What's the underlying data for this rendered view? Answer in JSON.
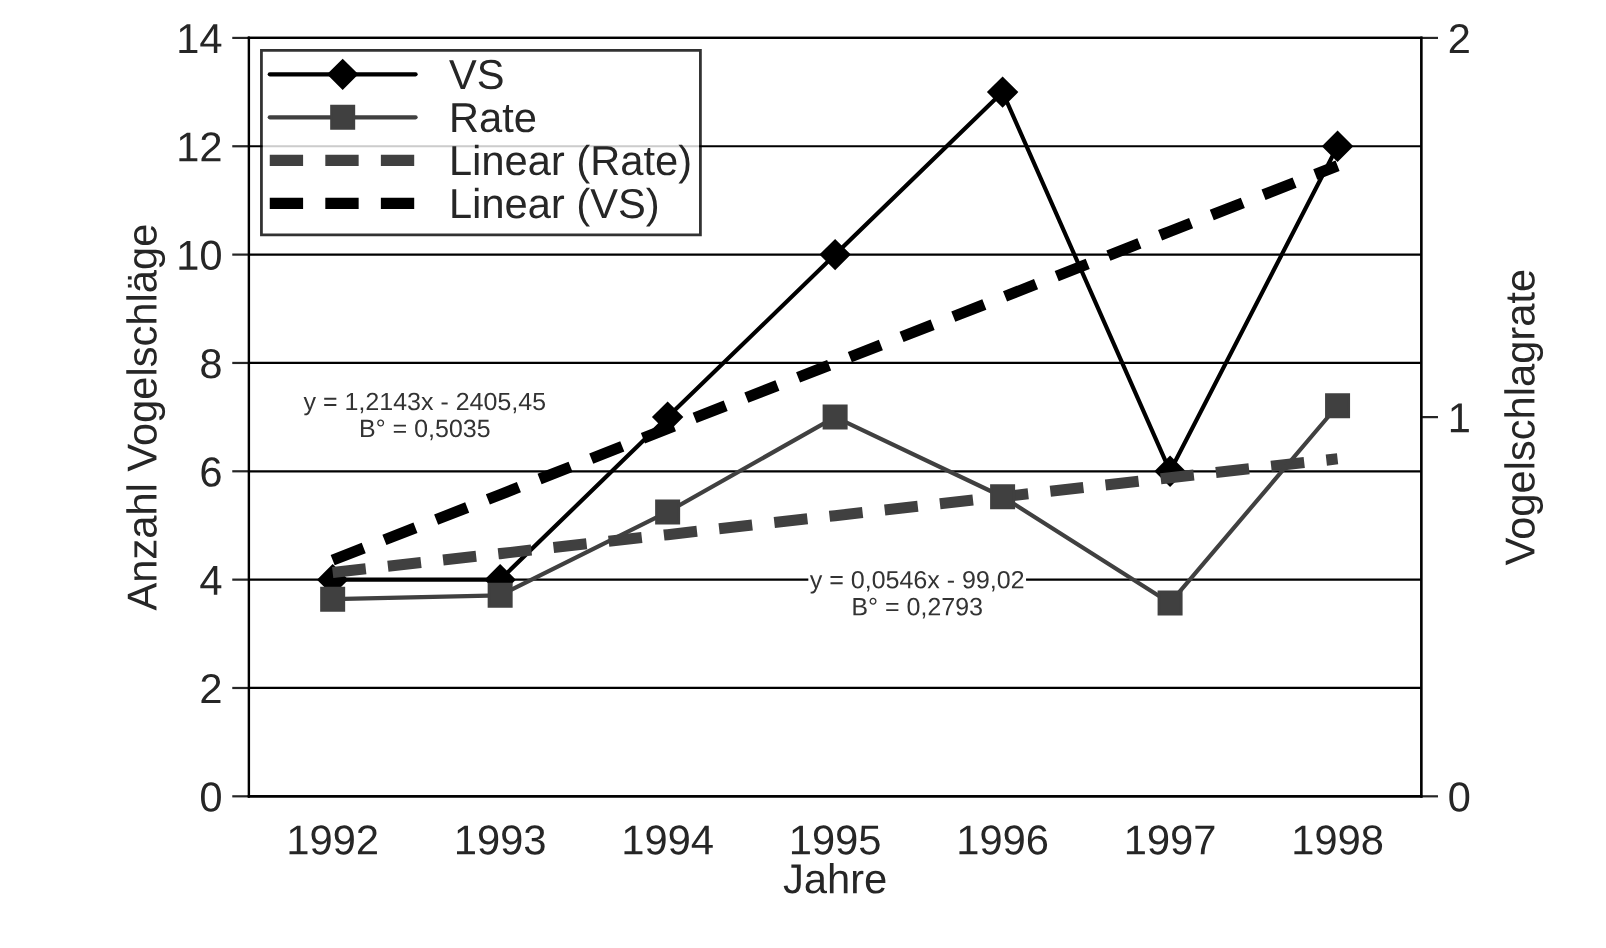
{
  "chart_data": {
    "type": "line",
    "xlabel": "Jahre",
    "ylabel": "Anzahl Vogelschläge",
    "y2label": "Vogelschlagrate",
    "categories": [
      "1992",
      "1993",
      "1994",
      "1995",
      "1996",
      "1997",
      "1998"
    ],
    "series": [
      {
        "name": "VS",
        "color": "#000000",
        "values": [
          4,
          4,
          7,
          10,
          13,
          6,
          12
        ],
        "marker": "diamond",
        "line_style": "solid"
      },
      {
        "name": "Rate",
        "color": "#404040",
        "values": [
          0.52,
          0.53,
          0.75,
          1.0,
          0.79,
          0.51,
          1.03
        ],
        "axis": "y2",
        "marker": "square",
        "line_style": "solid"
      },
      {
        "name": "Linear (Rate)",
        "color": "#404040",
        "values": [
          0.59,
          0.64,
          0.69,
          0.74,
          0.79,
          0.84,
          0.89
        ],
        "axis": "y2",
        "marker": "none",
        "line_style": "dashed"
      },
      {
        "name": "Linear (VS)",
        "color": "#000000",
        "values": [
          4.36,
          5.57,
          6.79,
          8.0,
          9.21,
          10.43,
          11.64
        ],
        "marker": "none",
        "line_style": "dashed"
      }
    ],
    "ylim": [
      0,
      14
    ],
    "yticks": [
      0,
      2,
      4,
      6,
      8,
      10,
      12,
      14
    ],
    "y2lim": [
      0,
      2
    ],
    "y2ticks": [
      0,
      1,
      2
    ],
    "annotations": [
      "y = 1,2143x - 2405,45\nB° = 0,5035",
      "y = 0,0546x - 99,02\nB° = 0,2793"
    ],
    "grid": "y",
    "legend": "top left"
  }
}
